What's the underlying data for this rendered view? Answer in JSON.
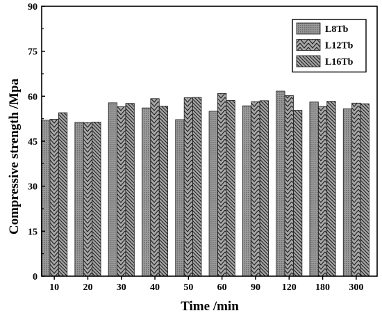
{
  "chart_data": {
    "type": "bar",
    "categories": [
      "10",
      "20",
      "30",
      "40",
      "50",
      "60",
      "90",
      "120",
      "180",
      "300"
    ],
    "series": [
      {
        "name": "L8Tb",
        "pattern": "dots",
        "values": [
          52.0,
          51.3,
          57.8,
          56.1,
          52.2,
          55.0,
          56.8,
          61.7,
          58.1,
          55.8
        ]
      },
      {
        "name": "L12Tb",
        "pattern": "chevron",
        "values": [
          52.3,
          51.2,
          56.5,
          59.2,
          59.5,
          60.9,
          58.2,
          60.2,
          56.6,
          57.7
        ]
      },
      {
        "name": "L16Tb",
        "pattern": "backslash",
        "values": [
          54.5,
          51.4,
          57.6,
          56.7,
          59.6,
          58.6,
          58.5,
          55.3,
          58.3,
          57.5
        ]
      }
    ],
    "xlabel": "Time /min",
    "ylabel": "Compressive strength /Mpa",
    "ylim": [
      0,
      90
    ],
    "yticks": [
      0,
      15,
      30,
      45,
      60,
      75,
      90
    ],
    "grid": false,
    "legend_position": "top-right",
    "bar_color": "#7f7f7f"
  }
}
